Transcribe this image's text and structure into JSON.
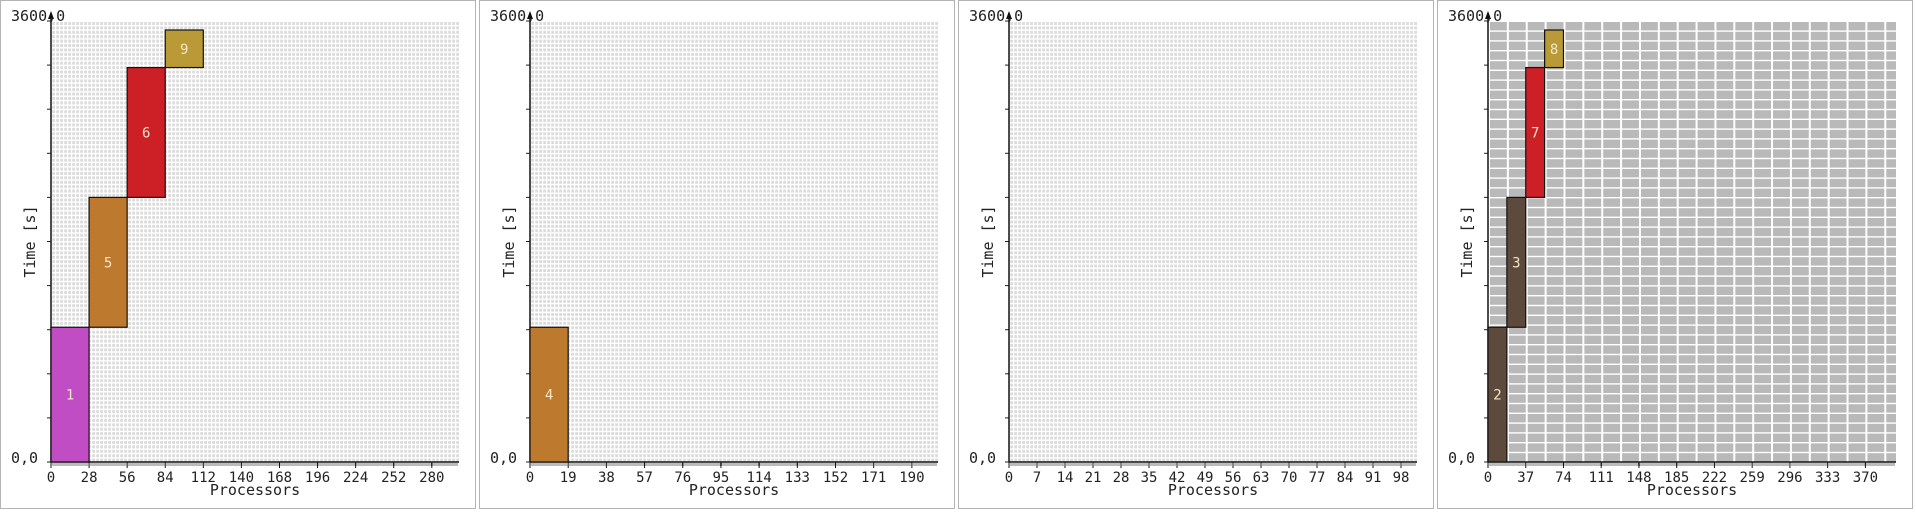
{
  "chart_data": [
    {
      "type": "bar",
      "title": "",
      "xlabel": "Processors",
      "ylabel": "Time [s]",
      "ylim": [
        0,
        3600
      ],
      "y_top_label": "3600,0",
      "y_bottom_label": "0,0",
      "xlim": [
        0,
        300
      ],
      "xticks": [
        0,
        28,
        56,
        84,
        112,
        140,
        168,
        196,
        224,
        252,
        280
      ],
      "grid_rows": 100,
      "grid_style": "light",
      "jobs": [
        {
          "id": "1",
          "x0": 0,
          "x1": 28,
          "y0": 0,
          "y1": 1100,
          "color": "#c04dc4"
        },
        {
          "id": "5",
          "x0": 28,
          "x1": 56,
          "y0": 1100,
          "y1": 2160,
          "color": "#bd7a2f"
        },
        {
          "id": "6",
          "x0": 56,
          "x1": 84,
          "y0": 2160,
          "y1": 3220,
          "color": "#cc1f26"
        },
        {
          "id": "9",
          "x0": 84,
          "x1": 112,
          "y0": 3220,
          "y1": 4200,
          "color": "#b99a36"
        }
      ]
    },
    {
      "type": "bar",
      "title": "",
      "xlabel": "Processors",
      "ylabel": "Time [s]",
      "ylim": [
        0,
        3600
      ],
      "y_top_label": "3600,0",
      "y_bottom_label": "0,0",
      "xlim": [
        0,
        203
      ],
      "xticks": [
        0,
        19,
        38,
        57,
        76,
        95,
        114,
        133,
        152,
        171,
        190
      ],
      "grid_rows": 100,
      "grid_style": "light",
      "jobs": [
        {
          "id": "4",
          "x0": 0,
          "x1": 19,
          "y0": 0,
          "y1": 1100,
          "color": "#bd7a2f"
        }
      ]
    },
    {
      "type": "bar",
      "title": "",
      "xlabel": "Processors",
      "ylabel": "Time [s]",
      "ylim": [
        0,
        3600
      ],
      "y_top_label": "3600,0",
      "y_bottom_label": "0,0",
      "xlim": [
        0,
        102
      ],
      "xticks": [
        0,
        7,
        14,
        21,
        28,
        35,
        42,
        49,
        56,
        63,
        70,
        77,
        84,
        91,
        98
      ],
      "grid_rows": 100,
      "grid_style": "light",
      "jobs": []
    },
    {
      "type": "bar",
      "title": "",
      "xlabel": "Processors",
      "ylabel": "Time [s]",
      "ylim": [
        0,
        3600
      ],
      "y_top_label": "3600,0",
      "y_bottom_label": "0,0",
      "xlim": [
        0,
        400
      ],
      "xticks": [
        0,
        37,
        74,
        111,
        148,
        185,
        222,
        259,
        296,
        333,
        370
      ],
      "grid_rows": 45,
      "grid_style": "dark",
      "jobs": [
        {
          "id": "2",
          "x0": 0,
          "x1": 18.5,
          "y0": 0,
          "y1": 1100,
          "color": "#5e4a3c"
        },
        {
          "id": "3",
          "x0": 18.5,
          "x1": 37,
          "y0": 1100,
          "y1": 2160,
          "color": "#5e4a3c"
        },
        {
          "id": "7",
          "x0": 37,
          "x1": 55.5,
          "y0": 2160,
          "y1": 3220,
          "color": "#cc1f26"
        },
        {
          "id": "8",
          "x0": 55.5,
          "x1": 74,
          "y0": 3220,
          "y1": 4200,
          "color": "#b99a36"
        }
      ]
    }
  ]
}
